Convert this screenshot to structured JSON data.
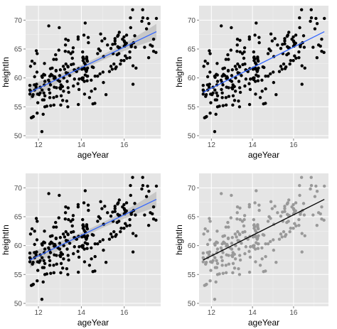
{
  "chart_data": [
    {
      "type": "scatter",
      "xlabel": "ageYear",
      "ylabel": "heightIn",
      "x_ticks": [
        "12",
        "14",
        "16"
      ],
      "y_ticks": [
        "50",
        "55",
        "60",
        "65",
        "70"
      ],
      "xlim": [
        11.4,
        17.7
      ],
      "ylim": [
        49.5,
        72.5
      ],
      "grid": true,
      "point_color": "#000000",
      "smooth": {
        "method": "linear",
        "confidence_band": true,
        "line_color": "#3366ff",
        "band_color": "#b3b3b3",
        "start": [
          11.6,
          57.5
        ],
        "end": [
          17.5,
          68.0
        ]
      },
      "points": []
    },
    {
      "type": "scatter",
      "xlabel": "ageYear",
      "ylabel": "heightIn",
      "x_ticks": [
        "12",
        "14",
        "16"
      ],
      "y_ticks": [
        "50",
        "55",
        "60",
        "65",
        "70"
      ],
      "xlim": [
        11.4,
        17.7
      ],
      "ylim": [
        49.5,
        72.5
      ],
      "grid": true,
      "point_color": "#000000",
      "smooth": {
        "method": "linear",
        "confidence_band": false,
        "line_color": "#3366ff",
        "start": [
          11.6,
          57.5
        ],
        "end": [
          17.5,
          68.0
        ]
      },
      "points": []
    },
    {
      "type": "scatter",
      "xlabel": "ageYear",
      "ylabel": "heightIn",
      "x_ticks": [
        "12",
        "14",
        "16"
      ],
      "y_ticks": [
        "50",
        "55",
        "60",
        "65",
        "70"
      ],
      "xlim": [
        11.4,
        17.7
      ],
      "ylim": [
        49.5,
        72.5
      ],
      "grid": true,
      "point_color": "#000000",
      "smooth": {
        "method": "linear",
        "confidence_band": true,
        "line_color": "#3366ff",
        "band_color": "#b3b3b3",
        "start": [
          11.6,
          57.5
        ],
        "end": [
          17.5,
          68.0
        ]
      },
      "points": []
    },
    {
      "type": "scatter",
      "xlabel": "ageYear",
      "ylabel": "heightIn",
      "x_ticks": [
        "12",
        "14",
        "16"
      ],
      "y_ticks": [
        "50",
        "55",
        "60",
        "65",
        "70"
      ],
      "xlim": [
        11.4,
        17.7
      ],
      "ylim": [
        49.5,
        72.5
      ],
      "grid": true,
      "point_color": "#999999",
      "smooth": {
        "method": "linear",
        "confidence_band": false,
        "line_color": "#000000",
        "start": [
          11.6,
          57.5
        ],
        "end": [
          17.5,
          68.0
        ]
      },
      "points": []
    }
  ]
}
